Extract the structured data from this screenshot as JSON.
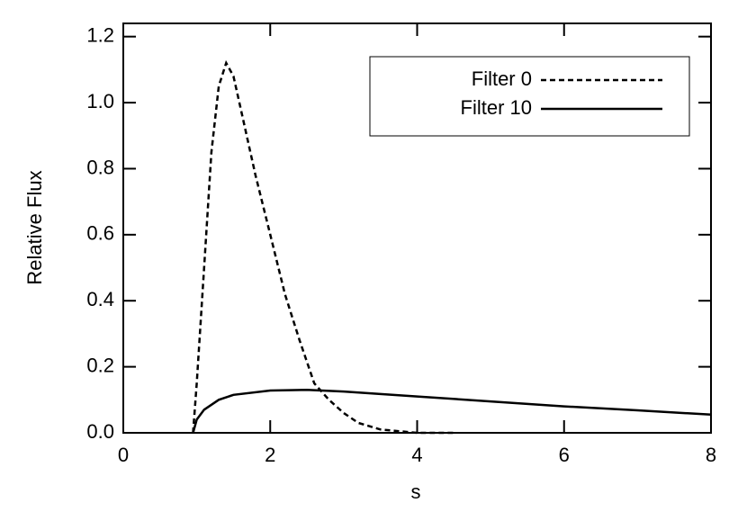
{
  "chart_data": {
    "type": "line",
    "x_label": "s",
    "y_label": "Relative Flux",
    "xlim": [
      0,
      8
    ],
    "xticks": [
      0,
      2,
      4,
      6,
      8
    ],
    "ylim": [
      0,
      1.24
    ],
    "yticks": [
      {
        "value": 0,
        "label": "0.0"
      },
      0.2,
      0.4,
      0.6,
      0.8,
      {
        "value": 1,
        "label": "1.0"
      },
      1.2
    ],
    "legend": "upper right",
    "series": [
      {
        "name": "Filter 0",
        "color": "#000000",
        "dash": true,
        "x": [
          0.95,
          1.0,
          1.1,
          1.2,
          1.3,
          1.4,
          1.5,
          1.6,
          1.8,
          2.0,
          2.2,
          2.4,
          2.6,
          2.8,
          3.0,
          3.2,
          3.5,
          4.0,
          4.5
        ],
        "values": [
          0,
          0.15,
          0.5,
          0.85,
          1.05,
          1.12,
          1.08,
          0.98,
          0.78,
          0.6,
          0.42,
          0.28,
          0.15,
          0.1,
          0.06,
          0.03,
          0.01,
          0,
          0
        ]
      },
      {
        "name": "Filter 10",
        "color": "#000000",
        "dash": false,
        "x": [
          0.95,
          1.0,
          1.1,
          1.3,
          1.5,
          2.0,
          2.5,
          3.0,
          4.0,
          5.0,
          6.0,
          7.0,
          8.0
        ],
        "values": [
          0,
          0.04,
          0.07,
          0.1,
          0.115,
          0.128,
          0.13,
          0.125,
          0.11,
          0.095,
          0.08,
          0.068,
          0.055
        ]
      }
    ]
  }
}
